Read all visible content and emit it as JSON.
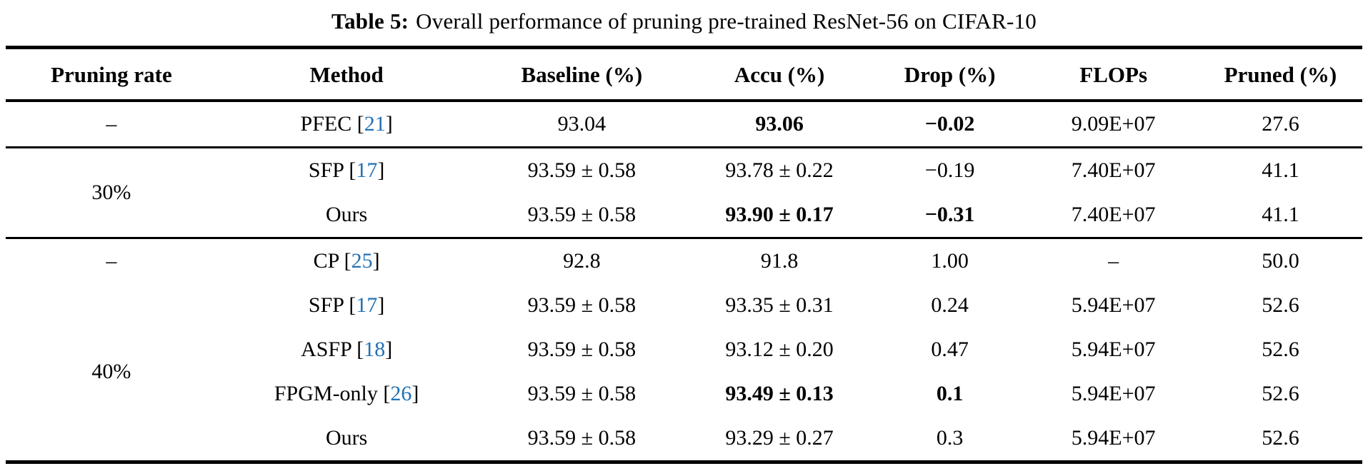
{
  "caption": {
    "label": "Table 5:",
    "text": "Overall performance of pruning pre-trained ResNet-56 on CIFAR-10"
  },
  "colors": {
    "text": "#000000",
    "citation_link": "#2171b5",
    "rules": "#000000",
    "background": "#ffffff"
  },
  "table": {
    "headers": [
      "Pruning rate",
      "Method",
      "Baseline (%)",
      "Accu (%)",
      "Drop (%)",
      "FLOPs",
      "Pruned (%)"
    ],
    "sections": [
      {
        "rows": [
          {
            "rate": "–",
            "rate_rowspan": 1,
            "method": "PFEC",
            "citation": "21",
            "baseline": "93.04",
            "accu": "93.06",
            "accu_bold": true,
            "drop": "−0.02",
            "drop_bold": true,
            "flops": "9.09E+07",
            "pruned": "27.6"
          }
        ]
      },
      {
        "rows": [
          {
            "rate": "30%",
            "rate_rowspan": 2,
            "method": "SFP",
            "citation": "17",
            "baseline": "93.59 ± 0.58",
            "accu": "93.78 ± 0.22",
            "drop": "−0.19",
            "flops": "7.40E+07",
            "pruned": "41.1"
          },
          {
            "method": "Ours",
            "baseline": "93.59 ± 0.58",
            "accu": "93.90 ± 0.17",
            "accu_bold": true,
            "drop": "−0.31",
            "drop_bold": true,
            "flops": "7.40E+07",
            "pruned": "41.1"
          }
        ]
      },
      {
        "rows": [
          {
            "rate": "–",
            "rate_rowspan": 1,
            "method": "CP",
            "citation": "25",
            "baseline": "92.8",
            "accu": "91.8",
            "drop": "1.00",
            "flops": "–",
            "pruned": "50.0"
          },
          {
            "rate": "40%",
            "rate_rowspan": 4,
            "method": "SFP",
            "citation": "17",
            "baseline": "93.59 ± 0.58",
            "accu": "93.35 ± 0.31",
            "drop": "0.24",
            "flops": "5.94E+07",
            "pruned": "52.6"
          },
          {
            "method": "ASFP",
            "citation": "18",
            "baseline": "93.59 ± 0.58",
            "accu": "93.12 ± 0.20",
            "drop": "0.47",
            "flops": "5.94E+07",
            "pruned": "52.6"
          },
          {
            "method": "FPGM-only",
            "citation": "26",
            "baseline": "93.59 ± 0.58",
            "accu": "93.49 ± 0.13",
            "accu_bold": true,
            "drop": "0.1",
            "drop_bold": true,
            "flops": "5.94E+07",
            "pruned": "52.6"
          },
          {
            "method": "Ours",
            "baseline": "93.59 ± 0.58",
            "accu": "93.29 ± 0.27",
            "drop": "0.3",
            "flops": "5.94E+07",
            "pruned": "52.6"
          }
        ]
      }
    ]
  }
}
